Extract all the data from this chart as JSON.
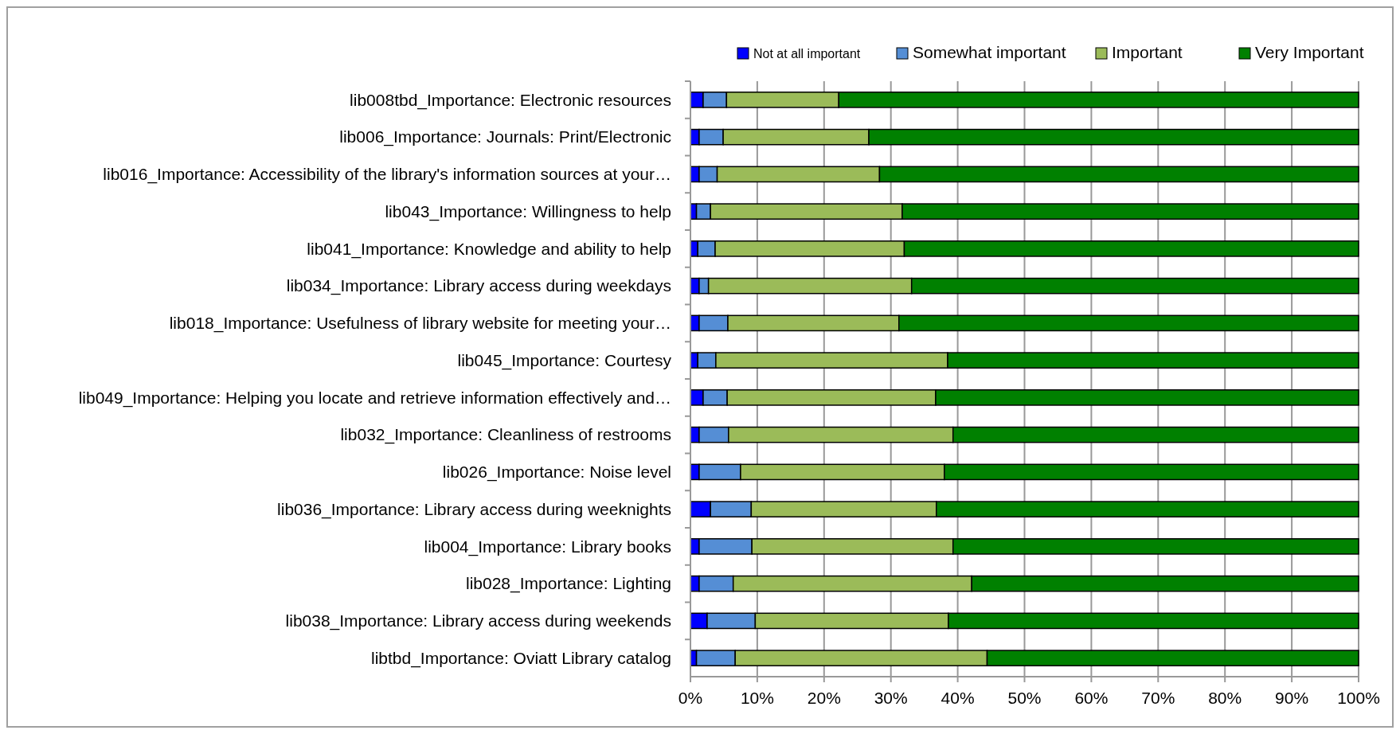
{
  "chart_data": {
    "type": "bar",
    "orientation": "horizontal",
    "stacked": true,
    "categories": [
      "lib008tbd_Importance: Electronic resources",
      "lib006_Importance: Journals: Print/Electronic",
      "lib016_Importance: Accessibility of the library's information sources at your…",
      "lib043_Importance: Willingness to help",
      "lib041_Importance: Knowledge and ability to help",
      "lib034_Importance: Library access during weekdays",
      "lib018_Importance: Usefulness of library website for meeting your…",
      "lib045_Importance: Courtesy",
      "lib049_Importance: Helping you locate and retrieve information effectively and…",
      "lib032_Importance: Cleanliness of restrooms",
      "lib026_Importance: Noise level",
      "lib036_Importance: Library access during weeknights",
      "lib004_Importance: Library books",
      "lib028_Importance: Lighting",
      "lib038_Importance: Library access during weekends",
      "libtbd_Importance: Oviatt Library catalog"
    ],
    "series": [
      {
        "name": "Not at all important",
        "color": "#0000ff",
        "values": [
          1.9,
          1.3,
          1.3,
          0.9,
          1.1,
          1.3,
          1.3,
          1.1,
          1.9,
          1.3,
          1.3,
          3.0,
          1.3,
          1.3,
          2.5,
          0.9
        ]
      },
      {
        "name": "Somewhat important",
        "color": "#558ed5",
        "values": [
          3.5,
          3.6,
          2.7,
          2.1,
          2.6,
          1.4,
          4.3,
          2.7,
          3.6,
          4.4,
          6.2,
          6.1,
          7.9,
          5.1,
          7.2,
          5.8
        ]
      },
      {
        "name": "Important",
        "color": "#9bbb59",
        "values": [
          16.8,
          21.8,
          24.3,
          28.7,
          28.3,
          30.4,
          25.6,
          34.7,
          31.2,
          33.6,
          30.5,
          27.7,
          30.1,
          35.7,
          28.9,
          37.7
        ]
      },
      {
        "name": "Very Important",
        "color": "#008000",
        "values": [
          77.8,
          73.3,
          71.7,
          68.3,
          68.0,
          66.9,
          68.8,
          61.5,
          63.3,
          60.7,
          62.0,
          63.2,
          60.7,
          57.9,
          61.4,
          55.6
        ]
      }
    ],
    "xlim": [
      0,
      100
    ],
    "xticks": [
      {
        "value": 0,
        "label": "0%"
      },
      {
        "value": 10,
        "label": "10%"
      },
      {
        "value": 20,
        "label": "20%"
      },
      {
        "value": 30,
        "label": "30%"
      },
      {
        "value": 40,
        "label": "40%"
      },
      {
        "value": 50,
        "label": "50%"
      },
      {
        "value": 60,
        "label": "60%"
      },
      {
        "value": 70,
        "label": "70%"
      },
      {
        "value": 80,
        "label": "80%"
      },
      {
        "value": 90,
        "label": "90%"
      },
      {
        "value": 100,
        "label": "100%"
      }
    ],
    "grid": "x",
    "legend": "top right"
  }
}
